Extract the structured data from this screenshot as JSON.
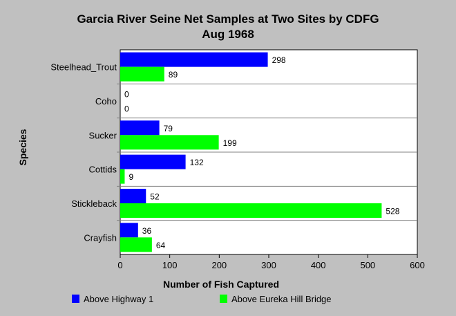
{
  "chart_data": {
    "type": "bar",
    "orientation": "horizontal",
    "title": "Garcia River Seine Net Samples at Two Sites by CDFG",
    "subtitle": "Aug 1968",
    "xlabel": "Number of Fish Captured",
    "ylabel": "Species",
    "xlim": [
      0,
      600
    ],
    "xticks": [
      0,
      100,
      200,
      300,
      400,
      500,
      600
    ],
    "categories": [
      "Steelhead_Trout",
      "Coho",
      "Sucker",
      "Cottids",
      "Stickleback",
      "Crayfish"
    ],
    "series": [
      {
        "name": "Above Highway 1",
        "color": "#0000ff",
        "values": [
          298,
          0,
          79,
          132,
          52,
          36
        ]
      },
      {
        "name": "Above Eureka Hill Bridge",
        "color": "#00ff00",
        "values": [
          89,
          0,
          199,
          9,
          528,
          64
        ]
      }
    ],
    "legend_position": "bottom",
    "plot_background": "#ffffff",
    "page_background": "#c0c0c0"
  }
}
